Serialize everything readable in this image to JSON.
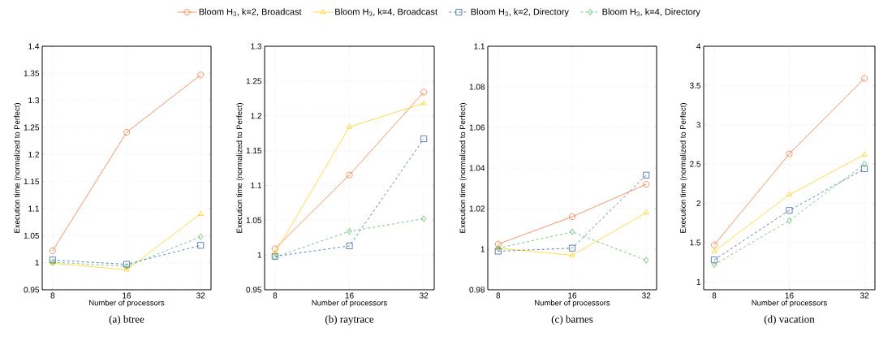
{
  "chart_data": [
    {
      "type": "line",
      "title": "(a) btree",
      "xlabel": "Number of processors",
      "ylabel": "Execution time (normalized to Perfect)",
      "categories": [
        "8",
        "16",
        "32"
      ],
      "ylim": [
        0.95,
        1.4
      ],
      "yticks": [
        0.95,
        1,
        1.05,
        1.1,
        1.15,
        1.2,
        1.25,
        1.3,
        1.35,
        1.4
      ],
      "grid": true,
      "legend": "top",
      "series": [
        {
          "name": "Bloom H$_{3}$, k=2, Broadcast",
          "color": "#f26522",
          "marker": "circle",
          "line_style": "solid",
          "values": [
            1.022,
            1.241,
            1.347
          ]
        },
        {
          "name": "Bloom H$_{3}$, k=4, Broadcast",
          "color": "#ffcc00",
          "marker": "triangle",
          "line_style": "solid",
          "values": [
            0.999,
            0.987,
            1.09
          ]
        },
        {
          "name": "Bloom H$_{3}$, k=2, Directory",
          "color": "#1f4e96",
          "marker": "square",
          "line_style": "dashed",
          "values": [
            1.005,
            0.997,
            1.032
          ]
        },
        {
          "name": "Bloom H$_{3}$, k=4, Directory",
          "color": "#3cb04a",
          "marker": "diamond",
          "line_style": "dashed",
          "values": [
            1.001,
            0.993,
            1.048
          ]
        }
      ]
    },
    {
      "type": "line",
      "title": "(b) raytrace",
      "xlabel": "Number of processors",
      "ylabel": "Execution time (normalized to Perfect)",
      "categories": [
        "8",
        "16",
        "32"
      ],
      "ylim": [
        0.95,
        1.3
      ],
      "yticks": [
        0.95,
        1,
        1.05,
        1.1,
        1.15,
        1.2,
        1.25,
        1.3
      ],
      "grid": true,
      "series": [
        {
          "color": "#f26522",
          "marker": "circle",
          "line_style": "solid",
          "values": [
            1.009,
            1.115,
            1.234
          ]
        },
        {
          "color": "#ffcc00",
          "marker": "triangle",
          "line_style": "solid",
          "values": [
            1.003,
            1.184,
            1.218
          ]
        },
        {
          "color": "#1f4e96",
          "marker": "square",
          "line_style": "dashed",
          "values": [
            0.998,
            1.013,
            1.167
          ]
        },
        {
          "color": "#3cb04a",
          "marker": "diamond",
          "line_style": "dashed",
          "values": [
            0.997,
            1.034,
            1.052
          ]
        }
      ]
    },
    {
      "type": "line",
      "title": "(c) barnes",
      "xlabel": "Number of processors",
      "ylabel": "Execution time (normalized to Perfect)",
      "categories": [
        "8",
        "16",
        "32"
      ],
      "ylim": [
        0.98,
        1.1
      ],
      "yticks": [
        0.98,
        1,
        1.02,
        1.04,
        1.06,
        1.08,
        1.1
      ],
      "grid": true,
      "series": [
        {
          "color": "#f26522",
          "marker": "circle",
          "line_style": "solid",
          "values": [
            1.0025,
            1.016,
            1.032
          ]
        },
        {
          "color": "#ffcc00",
          "marker": "triangle",
          "line_style": "solid",
          "values": [
            1.0005,
            0.997,
            1.018
          ]
        },
        {
          "color": "#1f4e96",
          "marker": "square",
          "line_style": "dashed",
          "values": [
            0.999,
            1.0005,
            1.0365
          ]
        },
        {
          "color": "#3cb04a",
          "marker": "diamond",
          "line_style": "dashed",
          "values": [
            1.0005,
            1.0085,
            0.9945
          ]
        }
      ]
    },
    {
      "type": "line",
      "title": "(d) vacation",
      "xlabel": "Number of processors",
      "ylabel": "Execution time (normalized to Perfect)",
      "categories": [
        "8",
        "16",
        "32"
      ],
      "ylim": [
        0.9,
        4
      ],
      "yticks": [
        1,
        1.5,
        2,
        2.5,
        3,
        3.5,
        4
      ],
      "grid": true,
      "series": [
        {
          "color": "#f26522",
          "marker": "circle",
          "line_style": "solid",
          "values": [
            1.47,
            2.63,
            3.59
          ]
        },
        {
          "color": "#ffcc00",
          "marker": "triangle",
          "line_style": "solid",
          "values": [
            1.39,
            2.11,
            2.62
          ]
        },
        {
          "color": "#1f4e96",
          "marker": "square",
          "line_style": "dashed",
          "values": [
            1.28,
            1.91,
            2.44
          ]
        },
        {
          "color": "#3cb04a",
          "marker": "diamond",
          "line_style": "dashed",
          "values": [
            1.22,
            1.78,
            2.5
          ]
        }
      ]
    }
  ]
}
